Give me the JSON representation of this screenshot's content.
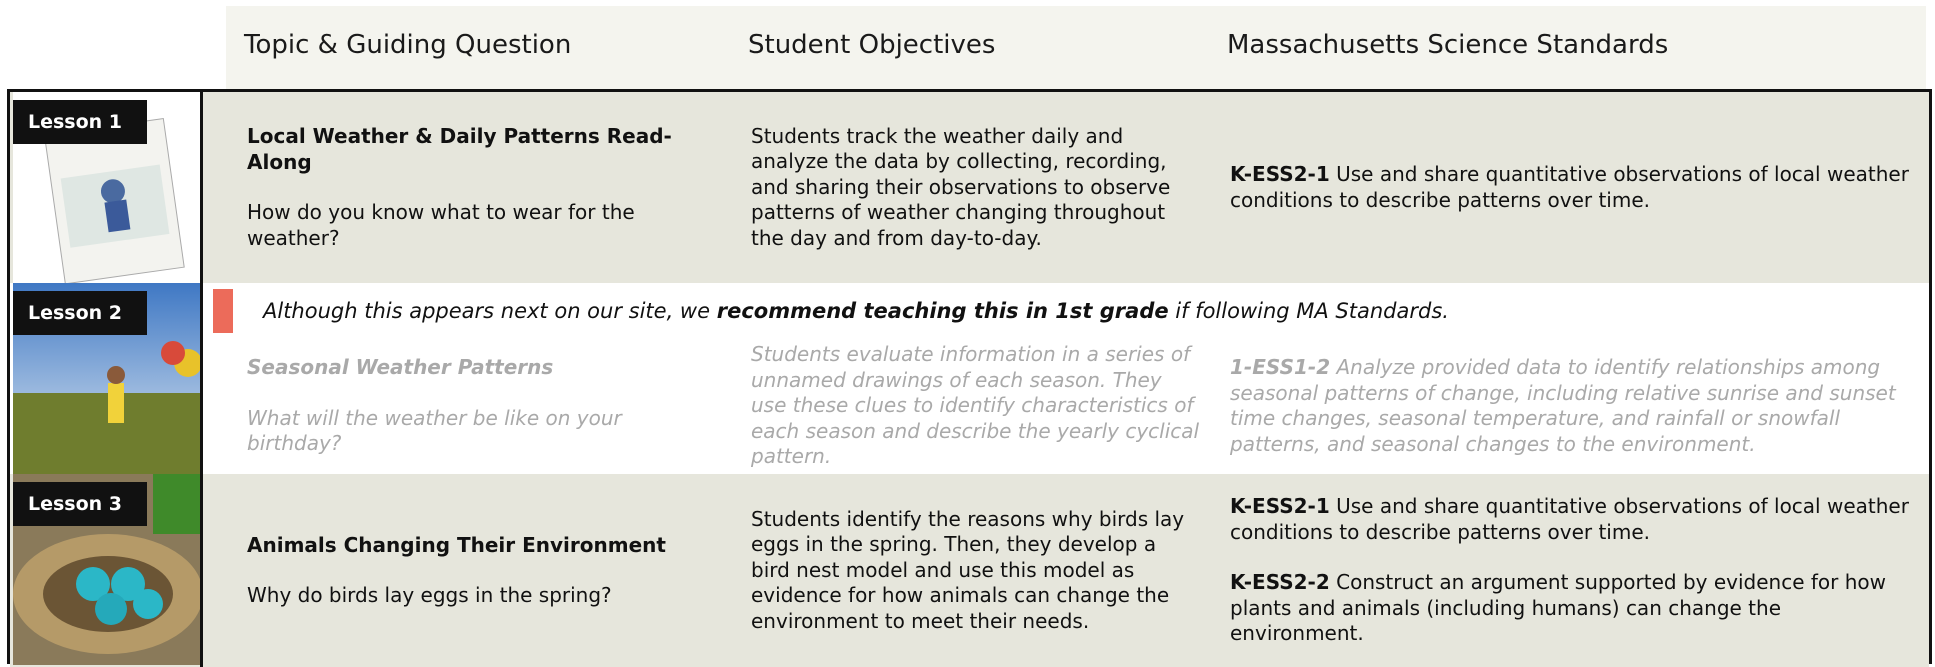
{
  "header": {
    "columns": [
      "Topic & Guiding Question",
      "Student Objectives",
      "Massachusetts Science Standards"
    ]
  },
  "lessons": [
    {
      "label": "Lesson 1",
      "topic": "Local Weather & Daily Patterns Read-Along",
      "question": "How do you know what to wear for the weather?",
      "objectives": "Students track the weather daily and analyze the data by collecting, recording, and sharing their observations to observe patterns of weather changing throughout the day and from day-to-day.",
      "standards": [
        {
          "code": "K-ESS2-1",
          "text": "Use and share quantitative observations of local weather conditions to describe patterns over time."
        }
      ]
    },
    {
      "label": "Lesson 2",
      "notice": {
        "before": "Although this appears next on our site, we",
        "bold": "recommend teaching this in 1st grade",
        "after": "if following MA Standards."
      },
      "topic": "Seasonal Weather Patterns",
      "question": "What will the weather be like on your birthday?",
      "objectives": "Students evaluate information in a series of unnamed drawings of each season. They use these clues to identify characteristics of each season and describe the yearly cyclical pattern.",
      "standards": [
        {
          "code": "1-ESS1-2",
          "text": "Analyze provided data to identify relationships among seasonal patterns of change, including relative sunrise and sunset time changes, seasonal temperature, and rainfall or snowfall patterns, and seasonal changes to the environment."
        }
      ]
    },
    {
      "label": "Lesson 3",
      "topic": "Animals Changing Their Environment",
      "question": "Why do birds lay eggs in the spring?",
      "objectives": "Students identify the reasons why birds lay eggs in the spring. Then, they develop a bird nest model and use this model as evidence for how animals can change the environment to meet their needs.",
      "standards": [
        {
          "code": "K-ESS2-1",
          "text": "Use and share quantitative observations of local weather conditions to describe patterns over time."
        },
        {
          "code": "K-ESS2-2",
          "text": "Construct an argument supported by evidence for how plants and animals (including humans) can change the environment."
        }
      ]
    }
  ]
}
